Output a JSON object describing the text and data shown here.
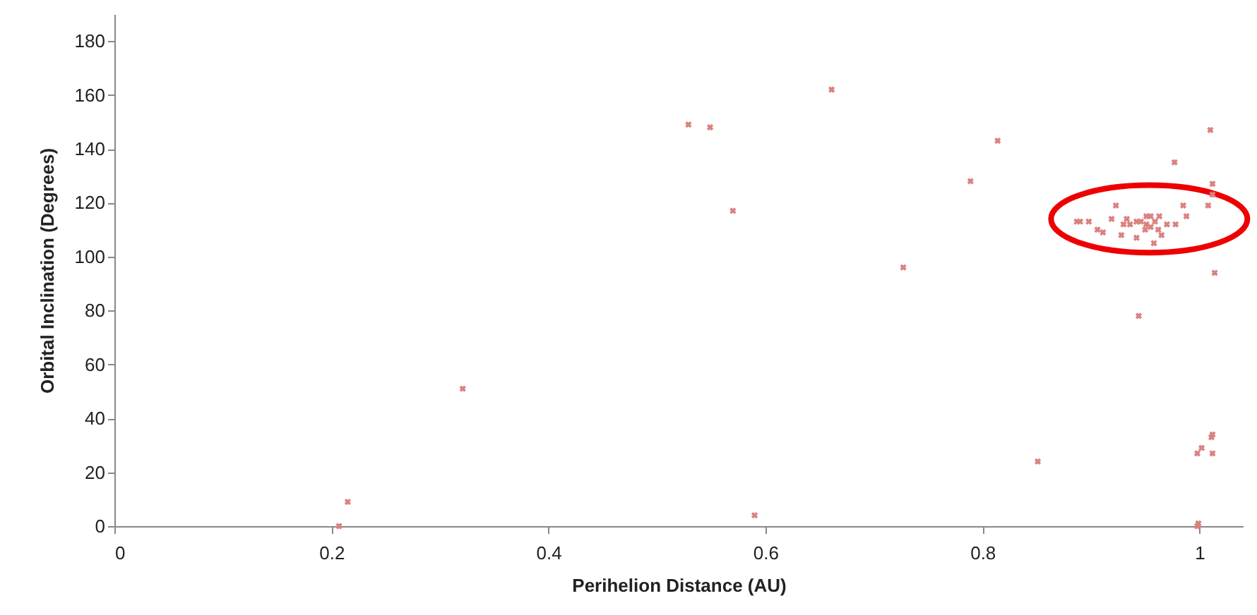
{
  "chart_data": {
    "type": "scatter",
    "xlabel": "Perihelion Distance (AU)",
    "ylabel": "Orbital Inclination (Degrees)",
    "xlim": [
      0,
      1.04
    ],
    "xticks": [
      0,
      0.2,
      0.4,
      0.6,
      0.8,
      1
    ],
    "ylim": [
      0,
      190
    ],
    "yticks": [
      0,
      20,
      40,
      60,
      80,
      100,
      120,
      140,
      160,
      180
    ],
    "grid": false,
    "marker": "cross",
    "series": [
      {
        "color": "#d9827f",
        "x": [
          0.207,
          0.215,
          0.321,
          0.529,
          0.549,
          0.57,
          0.59,
          0.661,
          0.727,
          0.789,
          0.814,
          0.851,
          0.944,
          0.998,
          0.999,
          1.011,
          1.012,
          1.002,
          0.998,
          1.012,
          1.01,
          0.977,
          1.012,
          1.012,
          1.008,
          1.014,
          0.887,
          0.89,
          0.898,
          0.906,
          0.911,
          0.919,
          0.923,
          0.928,
          0.93,
          0.933,
          0.936,
          0.942,
          0.942,
          0.946,
          0.951,
          0.951,
          0.955,
          0.958,
          0.959,
          0.962,
          0.963,
          0.965,
          0.97,
          0.978,
          0.985,
          0.988,
          0.955,
          0.95
        ],
        "values": [
          0,
          9,
          51,
          149,
          148,
          117,
          4,
          162,
          96,
          128,
          143,
          24,
          78,
          0,
          1,
          33,
          34,
          29,
          27,
          27,
          147,
          135,
          127,
          123,
          119,
          94,
          113,
          113,
          113,
          110,
          109,
          114,
          119,
          108,
          112,
          114,
          112,
          107,
          113,
          113,
          115,
          112,
          111,
          105,
          113,
          110,
          115,
          108,
          112,
          112,
          119,
          115,
          115,
          110
        ]
      }
    ]
  }
}
